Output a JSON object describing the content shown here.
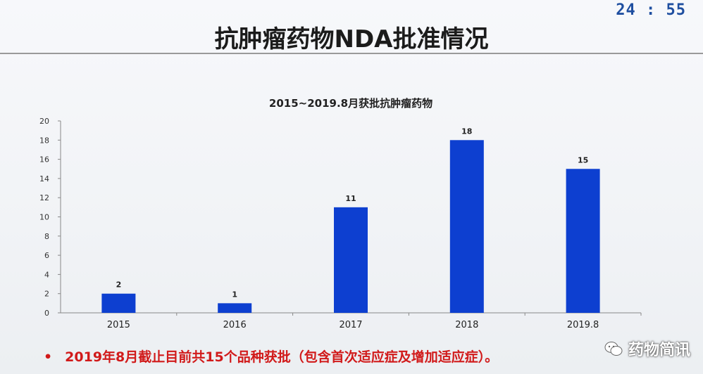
{
  "slide": {
    "timer": "24 : 55",
    "title": "抗肿瘤药物NDA批准情况",
    "bullet": "2019年8月截止目前共15个品种获批（包含首次适应症及增加适应症）。",
    "watermark": "药物简讯"
  },
  "colors": {
    "bar": "#0d3fd0",
    "bullet_text": "#d11a1a",
    "timer": "#1f4fa0"
  },
  "chart_data": {
    "type": "bar",
    "title": "2015~2019.8月获批抗肿瘤药物",
    "categories": [
      "2015",
      "2016",
      "2017",
      "2018",
      "2019.8"
    ],
    "values": [
      2,
      1,
      11,
      18,
      15
    ],
    "data_labels": [
      "2",
      "1",
      "11",
      "18",
      "15"
    ],
    "xlabel": "",
    "ylabel": "",
    "ylim": [
      0,
      20
    ],
    "yticks": [
      0,
      2,
      4,
      6,
      8,
      10,
      12,
      14,
      16,
      18,
      20
    ],
    "grid": false,
    "legend": "none"
  }
}
